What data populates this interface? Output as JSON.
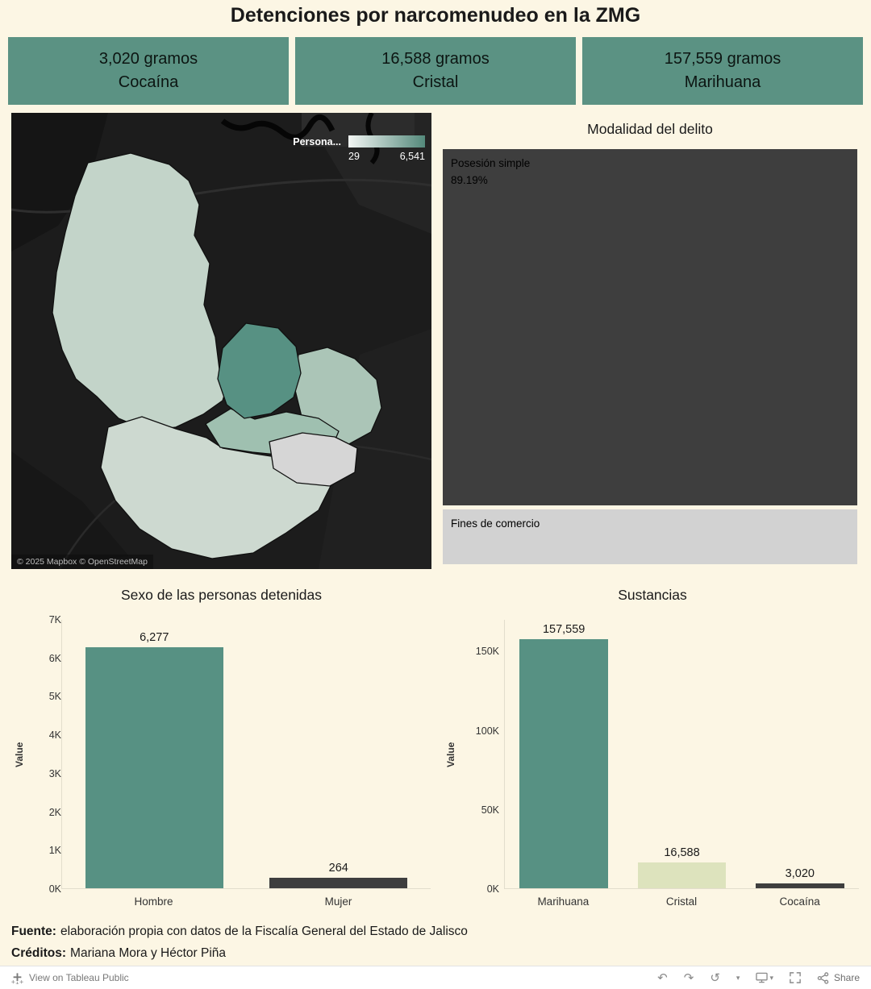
{
  "title": "Detenciones por narcomenudeo en la ZMG",
  "kpi_cards": [
    {
      "value": "3,020 gramos",
      "label": "Cocaína"
    },
    {
      "value": "16,588 gramos",
      "label": "Cristal"
    },
    {
      "value": "157,559 gramos",
      "label": "Marihuana"
    }
  ],
  "map": {
    "legend_title": "Persona...",
    "legend_min": "29",
    "legend_max": "6,541",
    "attribution": "© 2025 Mapbox © OpenStreetMap"
  },
  "modalidad": {
    "title": "Modalidad del delito",
    "blocks": [
      {
        "label": "Posesión simple",
        "value": "89.19%"
      },
      {
        "label": "Fines de comercio",
        "value": ""
      }
    ]
  },
  "footer": {
    "fuente_label": "Fuente:",
    "fuente_text": "elaboración propia con datos de la Fiscalía General del Estado de Jalisco",
    "creditos_label": "Créditos:",
    "creditos_text": "Mariana Mora y Héctor Piña"
  },
  "toolbar": {
    "view_label": "View on Tableau Public",
    "share_label": "Share"
  },
  "colors": {
    "teal": "#579183",
    "dark_gray": "#3e3e3e",
    "pale_green": "#dde3bd",
    "light_gray": "#d2d2d2",
    "background": "#fcf6e4",
    "kpi_card": "#5b9283",
    "legend_gradient_start": "#f3f6f4",
    "legend_gradient_end": "#54897b"
  },
  "chart_data": [
    {
      "type": "bar",
      "title": "Sexo de las personas detenidas",
      "xlabel": "",
      "ylabel": "Value",
      "categories": [
        "Hombre",
        "Mujer"
      ],
      "values": [
        6277,
        264
      ],
      "value_labels": [
        "6,277",
        "264"
      ],
      "bar_colors": [
        "#579183",
        "#3e3e3e"
      ],
      "ylim": [
        0,
        7000
      ],
      "yticks": [
        0,
        1000,
        2000,
        3000,
        4000,
        5000,
        6000,
        7000
      ],
      "ytick_labels": [
        "0K",
        "1K",
        "2K",
        "3K",
        "4K",
        "5K",
        "6K",
        "7K"
      ],
      "grid": false,
      "legend": "none"
    },
    {
      "type": "bar",
      "title": "Sustancias",
      "xlabel": "",
      "ylabel": "Value",
      "categories": [
        "Marihuana",
        "Cristal",
        "Cocaína"
      ],
      "values": [
        157559,
        16588,
        3020
      ],
      "value_labels": [
        "157,559",
        "16,588",
        "3,020"
      ],
      "bar_colors": [
        "#579183",
        "#dde3bd",
        "#3e3e3e"
      ],
      "ylim": [
        0,
        170000
      ],
      "yticks": [
        0,
        50000,
        100000,
        150000
      ],
      "ytick_labels": [
        "0K",
        "50K",
        "100K",
        "150K"
      ],
      "grid": false,
      "legend": "none"
    },
    {
      "type": "treemap",
      "title": "Modalidad del delito",
      "categories": [
        "Posesión simple",
        "Fines de comercio"
      ],
      "values": [
        89.19,
        10.81
      ],
      "value_labels": [
        "89.19%",
        ""
      ],
      "colors": [
        "#3e3e3e",
        "#d2d2d2"
      ]
    },
    {
      "type": "choropleth",
      "title": "Persona...",
      "legend": {
        "min": 29,
        "max": 6541,
        "min_label": "29",
        "max_label": "6,541"
      }
    }
  ]
}
